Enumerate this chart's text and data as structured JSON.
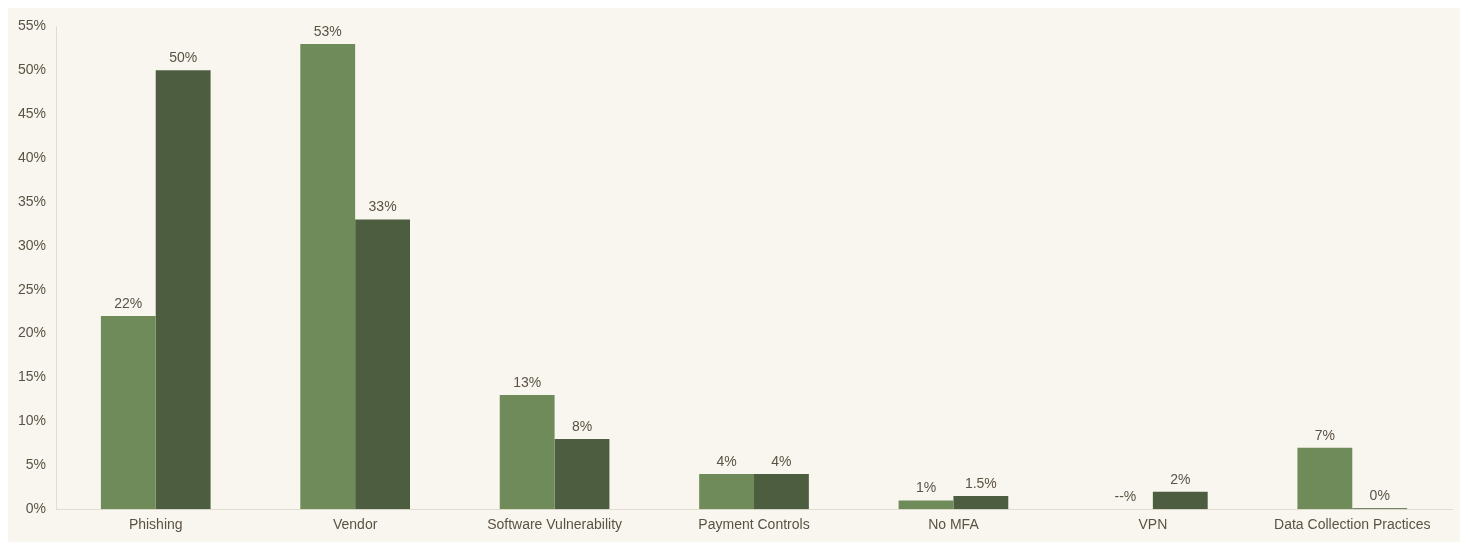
{
  "chart_data": {
    "type": "bar",
    "categories": [
      "Phishing",
      "Vendor",
      "Software Vulnerability",
      "Payment Controls",
      "No MFA",
      "VPN",
      "Data Collection Practices"
    ],
    "series": [
      {
        "color": "#6f8b5a",
        "values": [
          22,
          53,
          13,
          4,
          1,
          null,
          7
        ],
        "value_labels": [
          "22%",
          "53%",
          "13%",
          "4%",
          "1%",
          "--%",
          "7%"
        ]
      },
      {
        "color": "#4d5e40",
        "values": [
          50,
          33,
          8,
          4,
          1.5,
          2,
          0
        ],
        "value_labels": [
          "50%",
          "33%",
          "8%",
          "4%",
          "1.5%",
          "2%",
          "0%"
        ]
      }
    ],
    "ylim": [
      0,
      55
    ],
    "yticks": [
      {
        "value": 0,
        "label": "0%"
      },
      {
        "value": 5,
        "label": "5%"
      },
      {
        "value": 10,
        "label": "10%"
      },
      {
        "value": 15,
        "label": "15%"
      },
      {
        "value": 20,
        "label": "20%"
      },
      {
        "value": 25,
        "label": "25%"
      },
      {
        "value": 30,
        "label": "30%"
      },
      {
        "value": 35,
        "label": "35%"
      },
      {
        "value": 40,
        "label": "40%"
      },
      {
        "value": 45,
        "label": "45%"
      },
      {
        "value": 50,
        "label": "50%"
      },
      {
        "value": 55,
        "label": "55%"
      }
    ],
    "grid": false,
    "legend": false
  }
}
